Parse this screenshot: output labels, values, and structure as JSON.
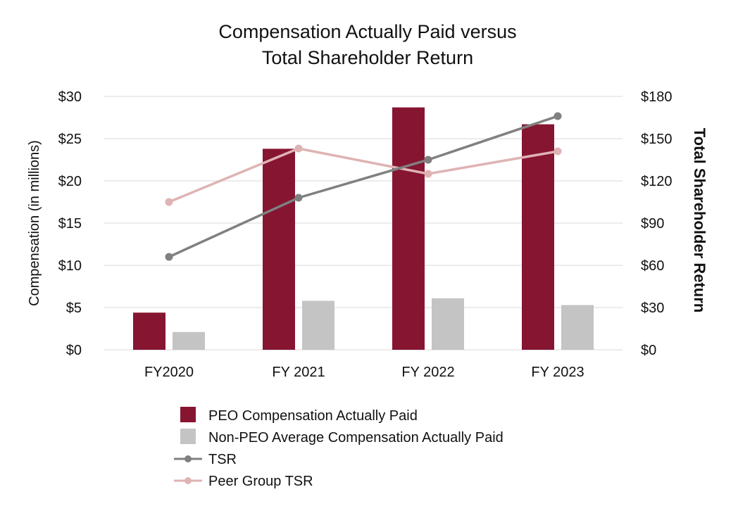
{
  "chart_data": {
    "type": "bar",
    "title_lines": [
      "Compensation Actually Paid versus",
      "Total Shareholder Return"
    ],
    "categories": [
      "FY2020",
      "FY 2021",
      "FY 2022",
      "FY 2023"
    ],
    "ylabel": "Compensation (in millions)",
    "y2label": "Total Shareholder Return",
    "ylim": [
      0,
      30
    ],
    "y2lim": [
      0,
      180
    ],
    "yticks": [
      "$0",
      "$5",
      "$10",
      "$15",
      "$20",
      "$25",
      "$30"
    ],
    "y2ticks": [
      "$0",
      "$30",
      "$60",
      "$90",
      "$120",
      "$150",
      "$180"
    ],
    "grid": true,
    "legend_position": "bottom",
    "series": [
      {
        "name": "PEO Compensation Actually Paid",
        "kind": "bar",
        "axis": "left",
        "color": "#861532",
        "values": [
          4.4,
          23.8,
          28.7,
          26.7
        ]
      },
      {
        "name": "Non-PEO Average Compensation Actually Paid",
        "kind": "bar",
        "axis": "left",
        "color": "#c4c4c4",
        "values": [
          2.1,
          5.8,
          6.1,
          5.3
        ]
      },
      {
        "name": "TSR",
        "kind": "line",
        "axis": "right",
        "color": "#808080",
        "values": [
          66,
          108,
          135,
          166
        ]
      },
      {
        "name": "Peer Group TSR",
        "kind": "line",
        "axis": "right",
        "color": "#dfb3b4",
        "values": [
          105,
          143,
          125,
          141
        ]
      }
    ]
  }
}
